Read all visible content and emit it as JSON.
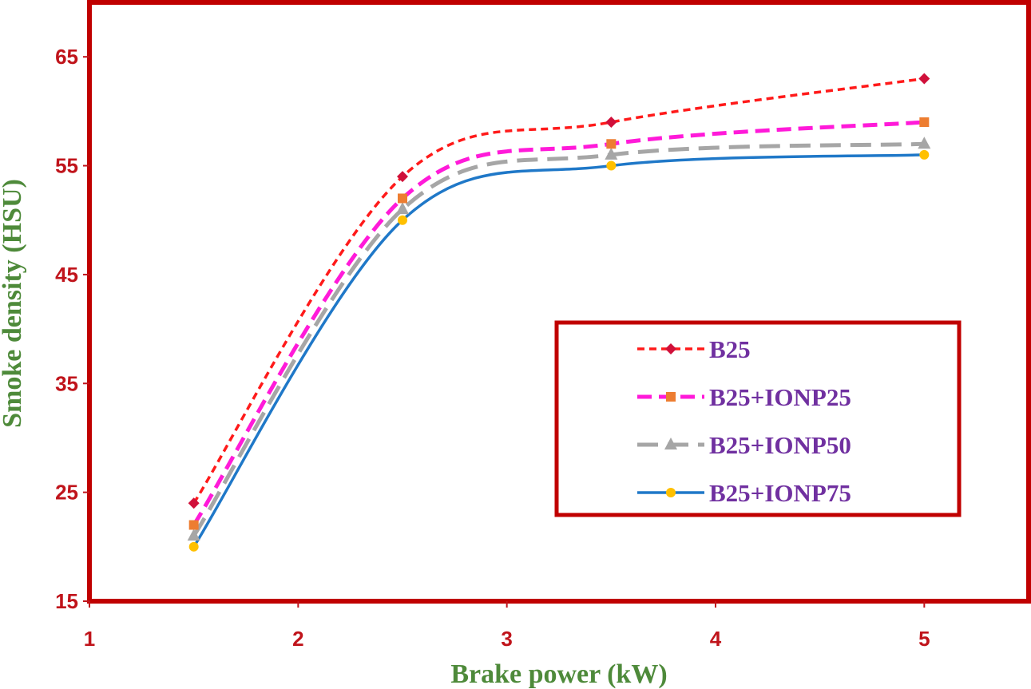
{
  "chart_data": {
    "type": "line",
    "title": "",
    "xlabel": "Brake power (kW)",
    "ylabel": "Smoke density (HSU)",
    "xlim": [
      1,
      5.5
    ],
    "ylim": [
      15,
      70
    ],
    "x_ticks": [
      "1",
      "2",
      "3",
      "4",
      "5"
    ],
    "y_ticks": [
      "15",
      "25",
      "35",
      "45",
      "55",
      "65"
    ],
    "x": [
      1.5,
      2.5,
      3.5,
      5
    ],
    "grid": false,
    "legend_position": "center-right",
    "series": [
      {
        "name": "B25",
        "values": [
          24,
          54,
          59,
          63
        ],
        "color": "#ff1a1a",
        "dash": "short-dash",
        "marker": "diamond",
        "marker_color": "#d0103a"
      },
      {
        "name": "B25+IONP25",
        "values": [
          22,
          52,
          57,
          59
        ],
        "color": "#ff1ad9",
        "dash": "dash",
        "marker": "square",
        "marker_color": "#ed7d31"
      },
      {
        "name": "B25+IONP50",
        "values": [
          21,
          51,
          56,
          57
        ],
        "color": "#a6a6a6",
        "dash": "long-dash",
        "marker": "triangle",
        "marker_color": "#a6a6a6"
      },
      {
        "name": "B25+IONP75",
        "values": [
          20,
          50,
          55,
          56
        ],
        "color": "#1f78c8",
        "dash": "solid",
        "marker": "circle",
        "marker_color": "#ffc000"
      }
    ],
    "colors": {
      "axis": "#c0141b",
      "frame": "#c00000",
      "tick_text": "#c0141b",
      "axis_title": "#4e8a3a",
      "legend_text": "#7030a0"
    }
  }
}
